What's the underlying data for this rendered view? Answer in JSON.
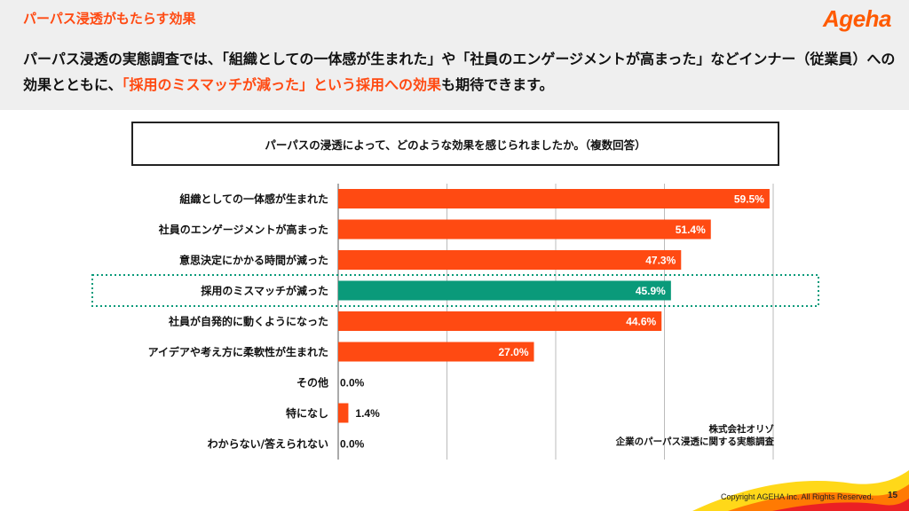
{
  "slide": {
    "title": "パーパス浸透がもたらす効果",
    "logo_text": "Ageha",
    "lead_part1": "パーパス浸透の実態調査では、「組織としての一体感が生まれた」や「社員のエンゲージメントが高まった」などインナー（従業員）への効果とともに、",
    "lead_highlight": "「採用のミスマッチが減った」という採用への効果",
    "lead_part2": "も期待できます。",
    "question": "パーパスの浸透によって、どのような効果を感じられましたか。（複数回答）",
    "source_line1": "株式会社オリゾ",
    "source_line2": "企業のパーパス浸透に関する実態調査",
    "copyright": "Copyright AGEHA Inc. All Rights Reserved.",
    "page_number": "15"
  },
  "colors": {
    "accent": "#ff4a12",
    "bar": "#ff4a12",
    "highlight_bar": "#0a9a7a",
    "highlight_border": "#0a9a7a",
    "grid": "#bbbbbb"
  },
  "chart_data": {
    "type": "bar",
    "orientation": "horizontal",
    "title": "パーパスの浸透によって、どのような効果を感じられましたか。（複数回答）",
    "categories": [
      "組織としての一体感が生まれた",
      "社員のエンゲージメントが高まった",
      "意思決定にかかる時間が減った",
      "採用のミスマッチが減った",
      "社員が自発的に動くようになった",
      "アイデアや考え方に柔軟性が生まれた",
      "その他",
      "特になし",
      "わからない/答えられない"
    ],
    "values": [
      59.5,
      51.4,
      47.3,
      45.9,
      44.6,
      27.0,
      0.0,
      1.4,
      0.0
    ],
    "labels": [
      "59.5%",
      "51.4%",
      "47.3%",
      "45.9%",
      "44.6%",
      "27.0%",
      "0.0%",
      "1.4%",
      "0.0%"
    ],
    "highlight_index": 3,
    "xlim": [
      0,
      60
    ],
    "gridlines": [
      0,
      15,
      30,
      45,
      60
    ],
    "unit": "%"
  }
}
